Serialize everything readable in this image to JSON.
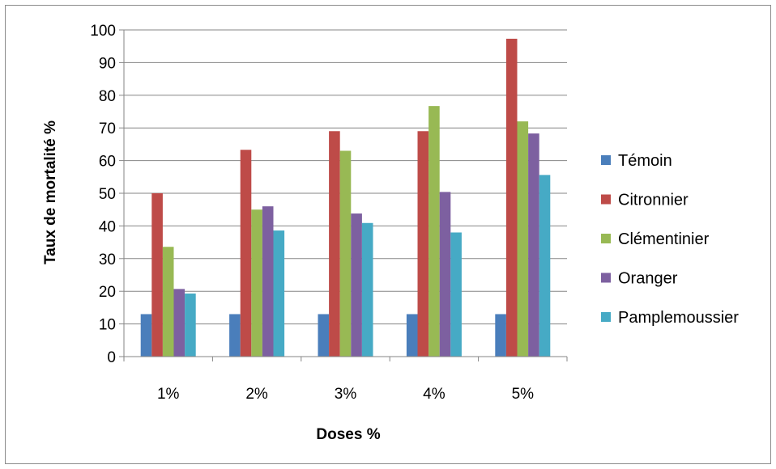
{
  "chart_data": {
    "type": "bar",
    "title": "",
    "xlabel": "Doses %",
    "ylabel": "Taux de mortalité %",
    "categories": [
      "1%",
      "2%",
      "3%",
      "4%",
      "5%"
    ],
    "ylim": [
      0,
      100
    ],
    "yticks": [
      0,
      10,
      20,
      30,
      40,
      50,
      60,
      70,
      80,
      90,
      100
    ],
    "grid": true,
    "legend_position": "right",
    "series": [
      {
        "name": "Témoin",
        "color": "#4a7ebb",
        "values": [
          13,
          13,
          13,
          13,
          13
        ]
      },
      {
        "name": "Citronnier",
        "color": "#be4b48",
        "values": [
          50,
          63.3,
          69,
          69,
          97.3
        ]
      },
      {
        "name": "Clémentinier",
        "color": "#98b954",
        "values": [
          33.6,
          45,
          63,
          76.7,
          72
        ]
      },
      {
        "name": "Oranger",
        "color": "#7d60a0",
        "values": [
          20.7,
          46,
          43.8,
          50.4,
          68.3
        ]
      },
      {
        "name": "Pamplemoussier",
        "color": "#46aac5",
        "values": [
          19.3,
          38.6,
          40.9,
          38,
          55.6
        ]
      }
    ]
  }
}
